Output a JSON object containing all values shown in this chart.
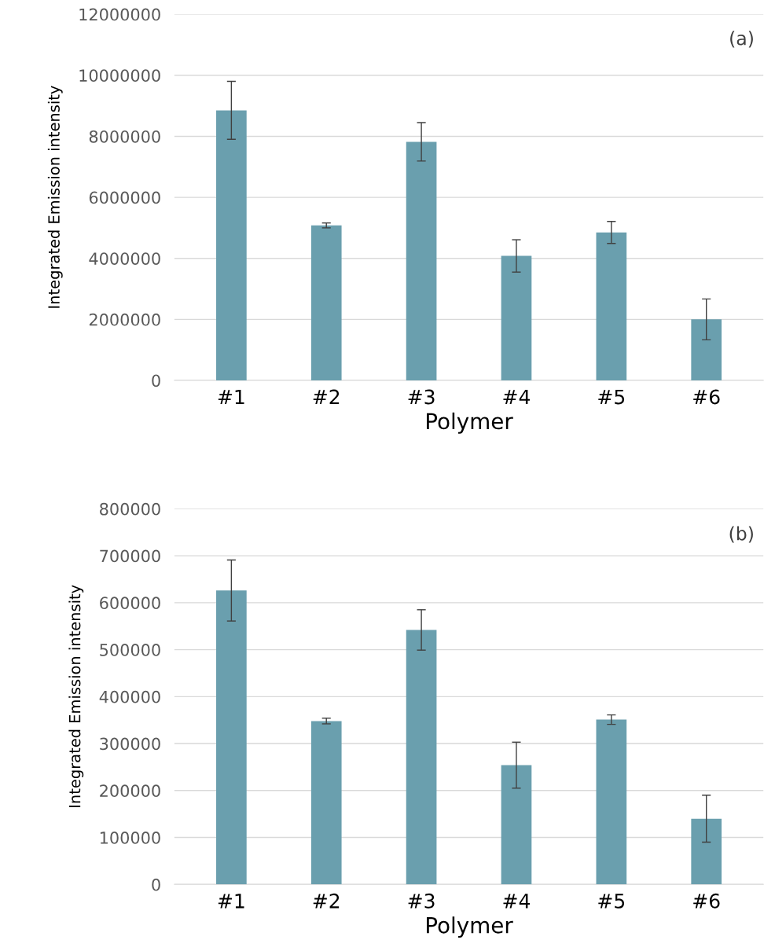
{
  "chart_data": [
    {
      "type": "bar",
      "categories": [
        "#1",
        "#2",
        "#3",
        "#4",
        "#5",
        "#6"
      ],
      "values": [
        8850000,
        5080000,
        7820000,
        4080000,
        4850000,
        2000000
      ],
      "errors": [
        950000,
        80000,
        630000,
        530000,
        360000,
        670000
      ],
      "color": "#6a9fae",
      "xlabel": "Polymer",
      "ylabel": "Integrated Emission intensity",
      "annotations": [
        "(a)"
      ],
      "ylim": [
        0,
        12000000
      ],
      "yticks": [
        0,
        2000000,
        4000000,
        6000000,
        8000000,
        10000000,
        12000000
      ],
      "grid": "y",
      "legend": false
    },
    {
      "type": "bar",
      "categories": [
        "#1",
        "#2",
        "#3",
        "#4",
        "#5",
        "#6"
      ],
      "values": [
        626000,
        348000,
        542000,
        254000,
        351000,
        140000
      ],
      "errors": [
        65000,
        6000,
        43000,
        49000,
        10000,
        50000
      ],
      "color": "#6a9fae",
      "xlabel": "Polymer",
      "ylabel": "Integrated Emission intensity",
      "annotations": [
        "(b)"
      ],
      "ylim": [
        0,
        800000
      ],
      "yticks": [
        0,
        100000,
        200000,
        300000,
        400000,
        500000,
        600000,
        700000,
        800000
      ],
      "grid": "y",
      "legend": false
    }
  ]
}
